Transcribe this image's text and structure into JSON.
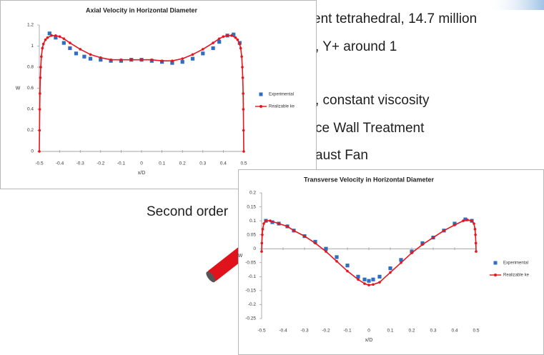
{
  "slide": {
    "lines": [
      "ent tetrahedral, 14.7 million",
      ", Y+ around 1",
      ", constant viscosity",
      "ce Wall Treatment",
      "aust Fan",
      "Second order"
    ]
  },
  "chart_data": [
    {
      "type": "scatter-line",
      "title": "Axial Velocity in Horizontal Diameter",
      "x_label": "x/D",
      "y_label": "W",
      "xlim": [
        -0.5,
        0.5
      ],
      "xticks": [
        -0.5,
        -0.4,
        -0.3,
        -0.2,
        -0.1,
        0,
        0.1,
        0.2,
        0.3,
        0.4,
        0.5
      ],
      "ylim": [
        0,
        1.2
      ],
      "yticks": [
        0,
        0.2,
        0.4,
        0.6,
        0.8,
        1,
        1.2
      ],
      "legend": "right",
      "series": [
        {
          "name": "Experimental",
          "color": "#2f6fc0",
          "style": "markers",
          "x": [
            -0.45,
            -0.42,
            -0.38,
            -0.35,
            -0.32,
            -0.28,
            -0.25,
            -0.2,
            -0.15,
            -0.1,
            -0.05,
            0,
            0.05,
            0.1,
            0.15,
            0.2,
            0.25,
            0.3,
            0.35,
            0.38,
            0.42,
            0.45,
            0.48
          ],
          "values": [
            1.12,
            1.08,
            1.03,
            0.98,
            0.93,
            0.9,
            0.88,
            0.87,
            0.86,
            0.86,
            0.87,
            0.87,
            0.86,
            0.85,
            0.84,
            0.85,
            0.88,
            0.93,
            0.98,
            1.04,
            1.1,
            1.11,
            1.03
          ]
        },
        {
          "name": "Realizable ke",
          "color": "#e8141c",
          "style": "line",
          "x": [
            -0.5,
            -0.499,
            -0.498,
            -0.497,
            -0.495,
            -0.493,
            -0.49,
            -0.485,
            -0.48,
            -0.47,
            -0.46,
            -0.44,
            -0.42,
            -0.4,
            -0.38,
            -0.35,
            -0.3,
            -0.25,
            -0.2,
            -0.15,
            -0.1,
            -0.05,
            0,
            0.05,
            0.1,
            0.15,
            0.2,
            0.25,
            0.3,
            0.35,
            0.38,
            0.4,
            0.42,
            0.44,
            0.46,
            0.47,
            0.48,
            0.485,
            0.49,
            0.493,
            0.495,
            0.497,
            0.498,
            0.499,
            0.5
          ],
          "values": [
            0,
            0.2,
            0.4,
            0.55,
            0.7,
            0.8,
            0.9,
            0.98,
            1.02,
            1.06,
            1.08,
            1.1,
            1.1,
            1.09,
            1.07,
            1.03,
            0.97,
            0.92,
            0.89,
            0.87,
            0.87,
            0.87,
            0.87,
            0.87,
            0.86,
            0.86,
            0.88,
            0.92,
            0.97,
            1.03,
            1.07,
            1.09,
            1.1,
            1.1,
            1.08,
            1.06,
            1.02,
            0.98,
            0.9,
            0.8,
            0.7,
            0.55,
            0.4,
            0.2,
            0
          ]
        }
      ]
    },
    {
      "type": "scatter-line",
      "title": "Transverse Velocity in Horizontal Diameter",
      "x_label": "x/D",
      "y_label": "W",
      "xlim": [
        -0.5,
        0.5
      ],
      "xticks": [
        -0.5,
        -0.4,
        -0.3,
        -0.2,
        -0.1,
        0,
        0.1,
        0.2,
        0.3,
        0.4,
        0.5
      ],
      "ylim": [
        -0.25,
        0.2
      ],
      "yticks": [
        -0.25,
        -0.2,
        -0.15,
        -0.1,
        -0.05,
        0,
        0.05,
        0.1,
        0.15,
        0.2
      ],
      "legend": "right",
      "series": [
        {
          "name": "Experimental",
          "color": "#2f6fc0",
          "style": "markers",
          "x": [
            -0.48,
            -0.45,
            -0.42,
            -0.38,
            -0.35,
            -0.3,
            -0.25,
            -0.2,
            -0.15,
            -0.1,
            -0.05,
            -0.02,
            0,
            0.02,
            0.05,
            0.1,
            0.15,
            0.2,
            0.25,
            0.3,
            0.35,
            0.4,
            0.45,
            0.48
          ],
          "values": [
            0.1,
            0.095,
            0.09,
            0.08,
            0.065,
            0.045,
            0.025,
            0,
            -0.03,
            -0.06,
            -0.1,
            -0.11,
            -0.115,
            -0.11,
            -0.1,
            -0.07,
            -0.04,
            -0.01,
            0.02,
            0.04,
            0.065,
            0.09,
            0.105,
            0.1
          ]
        },
        {
          "name": "Realizable ke",
          "color": "#e8141c",
          "style": "line",
          "x": [
            -0.5,
            -0.499,
            -0.497,
            -0.495,
            -0.49,
            -0.48,
            -0.46,
            -0.42,
            -0.38,
            -0.35,
            -0.3,
            -0.25,
            -0.2,
            -0.15,
            -0.1,
            -0.05,
            -0.02,
            0,
            0.02,
            0.05,
            0.1,
            0.15,
            0.2,
            0.25,
            0.3,
            0.35,
            0.4,
            0.44,
            0.46,
            0.48,
            0.49,
            0.495,
            0.497,
            0.499,
            0.5
          ],
          "values": [
            -0.01,
            0.02,
            0.05,
            0.07,
            0.09,
            0.1,
            0.1,
            0.09,
            0.08,
            0.065,
            0.045,
            0.02,
            -0.01,
            -0.045,
            -0.08,
            -0.11,
            -0.125,
            -0.13,
            -0.128,
            -0.12,
            -0.085,
            -0.05,
            -0.015,
            0.015,
            0.04,
            0.065,
            0.085,
            0.1,
            0.103,
            0.1,
            0.09,
            0.07,
            0.05,
            0.02,
            -0.01
          ]
        }
      ]
    }
  ]
}
